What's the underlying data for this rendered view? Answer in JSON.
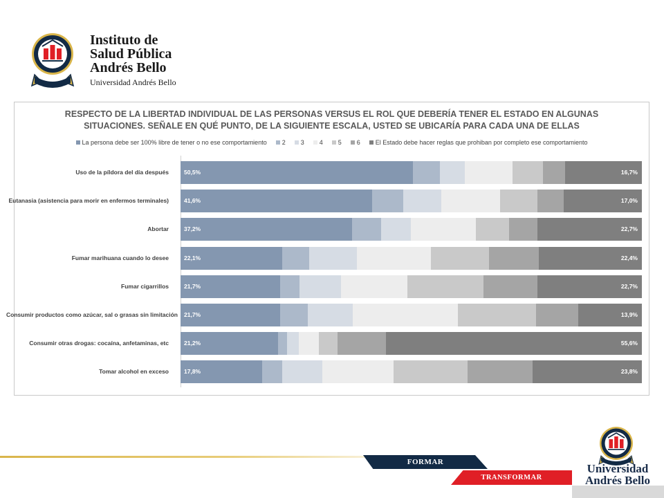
{
  "institute": {
    "name_lines": [
      "Instituto de",
      "Salud Pública",
      "Andrés Bello"
    ],
    "subtitle": "Universidad Andrés Bello"
  },
  "footer": {
    "banner_1": "FORMAR",
    "banner_2": "TRANSFORMAR",
    "university_lines": [
      "Universidad",
      "Andrés Bello"
    ]
  },
  "colors": {
    "navy": "#122a45",
    "red": "#e01f26",
    "gold": "#d9b54a",
    "series": [
      "#8497b0",
      "#acb9ca",
      "#d6dce4",
      "#ededed",
      "#c9c9c9",
      "#a5a5a5",
      "#7f7f7f"
    ]
  },
  "chart_data": {
    "type": "bar",
    "orientation": "horizontal",
    "stacked": "percent",
    "title_lines": [
      "RESPECTO DE LA LIBERTAD INDIVIDUAL DE LAS PERSONAS VERSUS EL ROL QUE DEBERÍA TENER EL ESTADO EN ALGUNAS",
      "SITUACIONES. SEÑALE EN QUÉ PUNTO,  DE LA SIGUIENTE ESCALA, USTED SE UBICARÍA PARA CADA UNA DE ELLAS"
    ],
    "legend_position": "top",
    "grid": false,
    "categories": [
      "Uso de la píldora del día después",
      "Eutanasia (asistencia para morir en enfermos terminales)",
      "Abortar",
      "Fumar marihuana cuando lo desee",
      "Fumar cigarrillos",
      "Consumir productos como azúcar, sal o grasas sin limitación",
      "Consumir otras drogas: cocaína, anfetaminas, etc",
      "Tomar alcohol en exceso"
    ],
    "series": [
      {
        "name": "La persona debe ser 100% libre de tener o no ese comportamiento",
        "values": [
          50.5,
          41.6,
          37.2,
          22.1,
          21.7,
          21.7,
          21.2,
          17.8
        ],
        "labels": [
          "50,5%",
          "41,6%",
          "37,2%",
          "22,1%",
          "21,7%",
          "21,7%",
          "21,2%",
          "17,8%"
        ]
      },
      {
        "name": "2",
        "values": [
          5.9,
          6.8,
          6.3,
          5.9,
          4.1,
          6.1,
          2.0,
          4.3
        ]
      },
      {
        "name": "3",
        "values": [
          5.3,
          8.3,
          6.5,
          10.3,
          9.1,
          9.7,
          2.5,
          8.8
        ]
      },
      {
        "name": "4",
        "values": [
          10.4,
          12.7,
          14.1,
          16.2,
          14.3,
          23.0,
          4.3,
          15.5
        ]
      },
      {
        "name": "5",
        "values": [
          6.6,
          8.2,
          7.2,
          12.5,
          16.6,
          17.0,
          4.1,
          16.1
        ]
      },
      {
        "name": "6",
        "values": [
          4.8,
          5.7,
          6.1,
          10.9,
          11.7,
          9.2,
          10.5,
          14.1
        ]
      },
      {
        "name": "El Estado debe hacer reglas que prohiban por completo ese comportamiento",
        "values": [
          16.7,
          17.0,
          22.7,
          22.4,
          22.7,
          13.9,
          55.6,
          23.8
        ],
        "labels": [
          "16,7%",
          "17,0%",
          "22,7%",
          "22,4%",
          "22,7%",
          "13,9%",
          "55,6%",
          "23,8%"
        ]
      }
    ]
  }
}
